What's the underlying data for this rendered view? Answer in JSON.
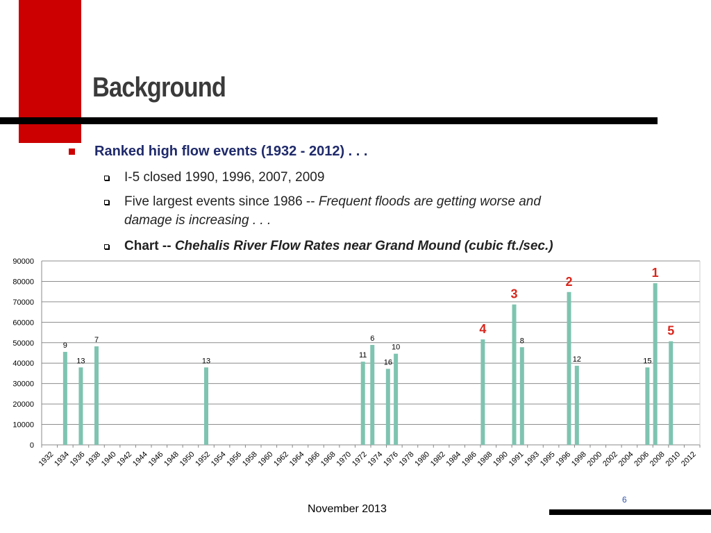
{
  "slide": {
    "title": "Background",
    "footer": "November 2013",
    "page_number": "6",
    "accent_color": "#cc0000"
  },
  "bullets": {
    "main": "Ranked high flow events (1932 - 2012) . . .",
    "sub1": "I-5 closed 1990, 1996, 2007, 2009",
    "sub2_plain": "Five largest events since 1986 -- ",
    "sub2_italic_a": "Frequent floods are getting worse and",
    "sub2_italic_b": "damage is increasing . . .",
    "sub3_bold": "Chart -- ",
    "sub3_bold_italic": "Chehalis River Flow Rates near Grand Mound (cubic ft./sec.)"
  },
  "chart_data": {
    "type": "bar",
    "title": "",
    "xlabel": "",
    "ylabel": "",
    "ylim": [
      0,
      90000
    ],
    "yticks": [
      "0",
      "10000",
      "20000",
      "30000",
      "40000",
      "50000",
      "60000",
      "70000",
      "80000",
      "90000"
    ],
    "xticks": [
      "1932",
      "1934",
      "1936",
      "1938",
      "1940",
      "1942",
      "1944",
      "1946",
      "1948",
      "1950",
      "1952",
      "1954",
      "1956",
      "1958",
      "1960",
      "1962",
      "1964",
      "1966",
      "1968",
      "1970",
      "1972",
      "1974",
      "1976",
      "1978",
      "1980",
      "1982",
      "1984",
      "1986",
      "1988",
      "1990",
      "1991",
      "1993",
      "1995",
      "1996",
      "1998",
      "2000",
      "2002",
      "2004",
      "2006",
      "2008",
      "2010",
      "2012"
    ],
    "grid": true,
    "bar_color": "#7ec4b0",
    "rank_color": "#d9261c",
    "bars": [
      {
        "tick": 1,
        "value": 45500,
        "label": "9"
      },
      {
        "tick": 2,
        "value": 37900,
        "label": "13"
      },
      {
        "tick": 3,
        "value": 48200,
        "label": "7"
      },
      {
        "tick": 10,
        "value": 37900,
        "label": "13"
      },
      {
        "tick": 20,
        "value": 40700,
        "label": "11"
      },
      {
        "tick": 20.6,
        "value": 48900,
        "label": "6"
      },
      {
        "tick": 21.6,
        "value": 37200,
        "label": "16"
      },
      {
        "tick": 22.1,
        "value": 44600,
        "label": "10"
      },
      {
        "tick": 27.65,
        "value": 51600,
        "label": "4",
        "rank": true
      },
      {
        "tick": 29.65,
        "value": 68700,
        "label": "3",
        "rank": true
      },
      {
        "tick": 30.15,
        "value": 47800,
        "label": "8"
      },
      {
        "tick": 33.15,
        "value": 74800,
        "label": "2",
        "rank": true
      },
      {
        "tick": 33.65,
        "value": 38700,
        "label": "12"
      },
      {
        "tick": 38.15,
        "value": 37900,
        "label": "15"
      },
      {
        "tick": 38.65,
        "value": 79100,
        "label": "1",
        "rank": true
      },
      {
        "tick": 39.65,
        "value": 50700,
        "label": "5",
        "rank": true
      }
    ]
  }
}
